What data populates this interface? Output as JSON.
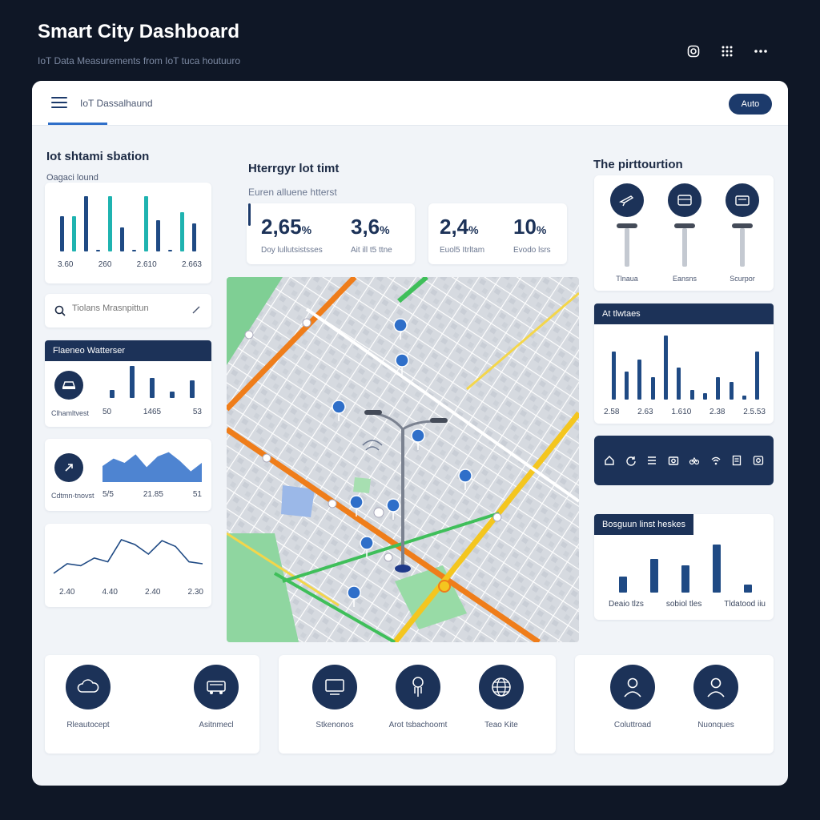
{
  "app": {
    "title": "Smart City Dashboard",
    "subtitle": "IoT Data Measurements from IoT tuca houtuuro"
  },
  "top_icons": [
    "camera-icon",
    "grid-icon",
    "more-icon"
  ],
  "header": {
    "title": "IoT Dassalhaund",
    "button": "Auto"
  },
  "left": {
    "section_title": "Iot shtami sbation",
    "chart1": {
      "caption": "Oagaci lound",
      "ticks": [
        "3.60",
        "260",
        "2.610",
        "2.663"
      ],
      "values": [
        45,
        45,
        70,
        2,
        70,
        30,
        2,
        70,
        40,
        2,
        50,
        35
      ]
    },
    "search": {
      "placeholder": "Tiolans Mrasnpittun"
    },
    "panel1": {
      "title": "Flaeneo Watterser",
      "label": "Clhamltvest",
      "values": [
        "50",
        "1465",
        "53"
      ],
      "bars": [
        10,
        40,
        25,
        8,
        22
      ]
    },
    "panel2": {
      "label": "Cdtmn-tnovst",
      "values": [
        "5/5",
        "21.85",
        "51"
      ],
      "series": [
        15,
        22,
        18,
        26,
        14,
        24,
        28,
        20,
        10,
        18
      ]
    },
    "line_chart": {
      "ticks": [
        "2.40",
        "4.40",
        "2.40",
        "2.30"
      ],
      "points": [
        10,
        20,
        18,
        26,
        22,
        45,
        40,
        30,
        44,
        38,
        22,
        20
      ]
    }
  },
  "center": {
    "section_title": "Hterrgyr lot timt",
    "caption": "Euren alluene htterst",
    "stats": [
      {
        "value": "2,65",
        "unit": "%",
        "label": "Doy lullutsistsses"
      },
      {
        "value": "3,6",
        "unit": "%",
        "label": "Ait ill t5 ttne"
      },
      {
        "value": "2,4",
        "unit": "%",
        "label": "Euol5 Itrltam"
      },
      {
        "value": "10",
        "unit": "%",
        "label": "Evodo lsrs"
      }
    ]
  },
  "right": {
    "section_title": "The pirttourtion",
    "devices": [
      {
        "icon": "plane-icon",
        "label": "Tlnaua"
      },
      {
        "icon": "bus-icon",
        "label": "Eansns"
      },
      {
        "icon": "truck-icon",
        "label": "Scurpor"
      }
    ],
    "chart_a": {
      "title": "At tlwtaes",
      "ticks": [
        "2.58",
        "2.63",
        "1.610",
        "2.38",
        "2.5.53"
      ],
      "values": [
        60,
        35,
        50,
        28,
        80,
        40,
        12,
        8,
        28,
        22,
        5,
        60
      ]
    },
    "toolbar_icons": [
      "home-icon",
      "refresh-icon",
      "list-icon",
      "camera-icon",
      "bike-icon",
      "wifi-icon",
      "document-icon",
      "image-icon"
    ],
    "chart_b": {
      "title": "Bosguun linst heskes",
      "labels": [
        "Deaio tlzs",
        "sobiol tles",
        "Tldatood iiu"
      ],
      "values": [
        20,
        42,
        34,
        60,
        10
      ]
    }
  },
  "bottom": {
    "group1": [
      {
        "icon": "cloud-icon",
        "label": "Rleautocept"
      },
      {
        "icon": "car-icon",
        "label": "Asitnmecl"
      }
    ],
    "group2": [
      {
        "icon": "monitor-icon",
        "label": "Stkenonos"
      },
      {
        "icon": "lamp-icon",
        "label": "Arot tsbachoomt"
      },
      {
        "icon": "globe-icon",
        "label": "Teao Kite"
      }
    ],
    "group3": [
      {
        "icon": "user-icon",
        "label": "Coluttroad"
      },
      {
        "icon": "user-icon",
        "label": "Nuonques"
      }
    ]
  }
}
